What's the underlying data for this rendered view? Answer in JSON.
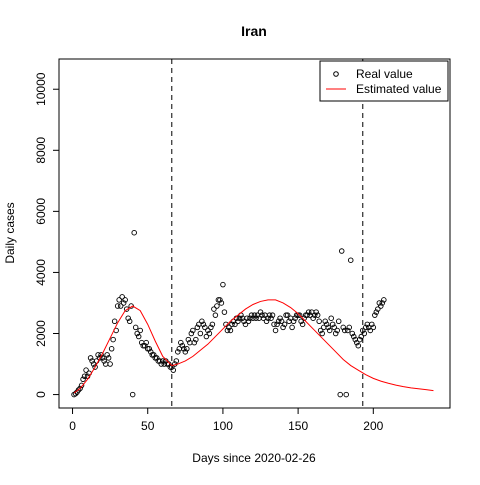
{
  "chart_data": {
    "type": "scatter",
    "title": "Iran",
    "xlabel": "Days since 2020-02-26",
    "ylabel": "Daily cases",
    "xlim": [
      -9,
      251
    ],
    "ylim": [
      -440,
      10990
    ],
    "xticks": [
      0,
      50,
      100,
      150,
      200
    ],
    "yticks": [
      0,
      2000,
      4000,
      6000,
      8000,
      10000
    ],
    "vlines": [
      66,
      193
    ],
    "legend": "topright",
    "series": [
      {
        "name": "Real value",
        "color": "#000000",
        "marker": "circle",
        "x": [
          1,
          2,
          3,
          4,
          5,
          6,
          7,
          8,
          9,
          10,
          11,
          12,
          13,
          14,
          15,
          16,
          17,
          18,
          19,
          20,
          21,
          22,
          23,
          24,
          25,
          26,
          27,
          28,
          29,
          30,
          31,
          32,
          33,
          34,
          35,
          36,
          37,
          38,
          39,
          40,
          41,
          42,
          43,
          44,
          45,
          46,
          47,
          48,
          49,
          50,
          51,
          52,
          53,
          54,
          55,
          56,
          57,
          58,
          59,
          60,
          61,
          62,
          63,
          64,
          65,
          66,
          67,
          68,
          69,
          70,
          71,
          72,
          73,
          74,
          75,
          76,
          77,
          78,
          79,
          80,
          81,
          82,
          83,
          84,
          85,
          86,
          87,
          88,
          89,
          90,
          91,
          92,
          93,
          94,
          95,
          96,
          97,
          98,
          99,
          100,
          101,
          102,
          103,
          104,
          105,
          106,
          107,
          108,
          109,
          110,
          111,
          112,
          113,
          114,
          115,
          116,
          117,
          118,
          119,
          120,
          121,
          122,
          123,
          124,
          125,
          126,
          127,
          128,
          129,
          130,
          131,
          132,
          133,
          134,
          135,
          136,
          137,
          138,
          139,
          140,
          141,
          142,
          143,
          144,
          145,
          146,
          147,
          148,
          149,
          150,
          151,
          152,
          153,
          154,
          155,
          156,
          157,
          158,
          159,
          160,
          161,
          162,
          163,
          164,
          165,
          166,
          167,
          168,
          169,
          170,
          171,
          172,
          173,
          174,
          175,
          176,
          177,
          178,
          179,
          180,
          181,
          182,
          183,
          184,
          185,
          186,
          187,
          188,
          189,
          190,
          191,
          192,
          193,
          194,
          195,
          196,
          197,
          198,
          199,
          200,
          201,
          202,
          203,
          204,
          205,
          206,
          207
        ],
        "values": [
          0,
          30,
          80,
          150,
          200,
          300,
          500,
          600,
          800,
          600,
          700,
          1200,
          1100,
          1000,
          900,
          1100,
          1300,
          1200,
          1300,
          1200,
          1100,
          1000,
          1300,
          1200,
          1000,
          1500,
          1800,
          2400,
          2100,
          2900,
          3100,
          2900,
          3200,
          3000,
          3100,
          2800,
          2500,
          2400,
          2900,
          0,
          5300,
          2200,
          2000,
          1900,
          2100,
          1700,
          1600,
          1600,
          1700,
          1500,
          1500,
          1400,
          1300,
          1300,
          1200,
          1200,
          1100,
          1100,
          1000,
          1100,
          1000,
          1100,
          1000,
          1000,
          900,
          900,
          800,
          1000,
          1100,
          1400,
          1500,
          1700,
          1600,
          1500,
          1400,
          1500,
          1800,
          1700,
          2000,
          2100,
          1700,
          1800,
          2200,
          2300,
          2000,
          2400,
          2300,
          2200,
          1900,
          2100,
          2000,
          2200,
          2300,
          2800,
          2600,
          2900,
          3100,
          3100,
          3000,
          3600,
          2700,
          2300,
          2100,
          2200,
          2100,
          2300,
          2400,
          2300,
          2500,
          2400,
          2500,
          2600,
          2500,
          2400,
          2300,
          2500,
          2400,
          2500,
          2600,
          2500,
          2600,
          2500,
          2600,
          2500,
          2700,
          2600,
          2500,
          2600,
          2400,
          2500,
          2600,
          2500,
          2600,
          2300,
          2100,
          2300,
          2400,
          2500,
          2400,
          2200,
          2300,
          2600,
          2600,
          2400,
          2500,
          2200,
          2400,
          2500,
          2600,
          2600,
          2600,
          2400,
          2300,
          2500,
          2600,
          2600,
          2700,
          2600,
          2700,
          2500,
          2600,
          2700,
          2600,
          2400,
          2100,
          2000,
          2200,
          2400,
          2300,
          2200,
          2100,
          2500,
          2300,
          2200,
          2000,
          2100,
          2400,
          0,
          4700,
          2200,
          2100,
          0,
          2100,
          2200,
          4400,
          2000,
          1900,
          1800,
          1700,
          1600,
          1800,
          1900,
          2100,
          2000,
          2200,
          2300,
          2200,
          2100,
          2300,
          2200,
          2600,
          2700,
          2800,
          3000,
          2900,
          3000,
          3100
        ]
      },
      {
        "name": "Estimated value",
        "color": "#ff0000",
        "marker": "line",
        "x": [
          1,
          5,
          10,
          15,
          20,
          25,
          30,
          35,
          40,
          45,
          50,
          55,
          60,
          66,
          70,
          75,
          80,
          85,
          90,
          95,
          100,
          105,
          110,
          115,
          120,
          125,
          130,
          135,
          140,
          145,
          150,
          155,
          160,
          165,
          170,
          175,
          180,
          185,
          190,
          195,
          200,
          205,
          210,
          215,
          220,
          225,
          230,
          235,
          240
        ],
        "values": [
          50,
          200,
          500,
          900,
          1350,
          1850,
          2350,
          2750,
          2900,
          2750,
          2300,
          1750,
          1250,
          950,
          1000,
          1100,
          1250,
          1450,
          1650,
          1900,
          2150,
          2400,
          2600,
          2800,
          2950,
          3050,
          3100,
          3100,
          3000,
          2850,
          2650,
          2400,
          2150,
          1900,
          1650,
          1400,
          1150,
          950,
          800,
          650,
          530,
          440,
          370,
          310,
          260,
          220,
          190,
          160,
          130
        ]
      }
    ]
  }
}
